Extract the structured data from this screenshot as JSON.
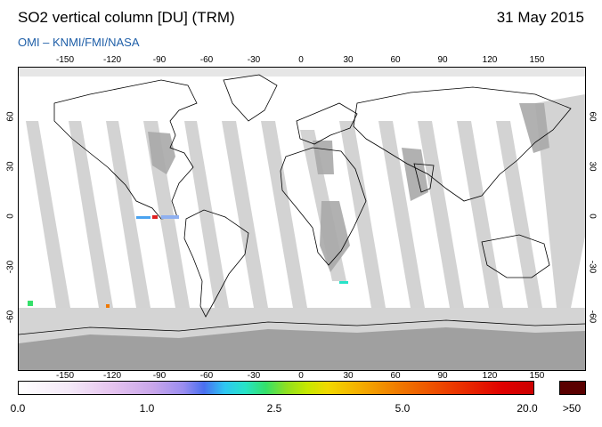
{
  "header": {
    "title": "SO2 vertical column [DU] (TRM)",
    "date": "31 May 2015",
    "credits": "OMI  –  KNMI/FMI/NASA"
  },
  "map": {
    "projection": "equirectangular",
    "lon_ticks": [
      "-150",
      "-120",
      "-90",
      "-60",
      "-30",
      "0",
      "30",
      "60",
      "90",
      "120",
      "150"
    ],
    "lat_ticks": [
      "60",
      "30",
      "0",
      "-30",
      "-60"
    ],
    "colors": {
      "no_data": "#d3d3d3",
      "land_no_data": "#a9a9a9",
      "ocean_data": "#ffffff",
      "coastline": "#000000"
    }
  },
  "colorbar": {
    "labels": [
      "0.0",
      "1.0",
      "2.5",
      "5.0",
      "20.0"
    ],
    "max_label": ">50",
    "max_color": "#5a0000"
  }
}
